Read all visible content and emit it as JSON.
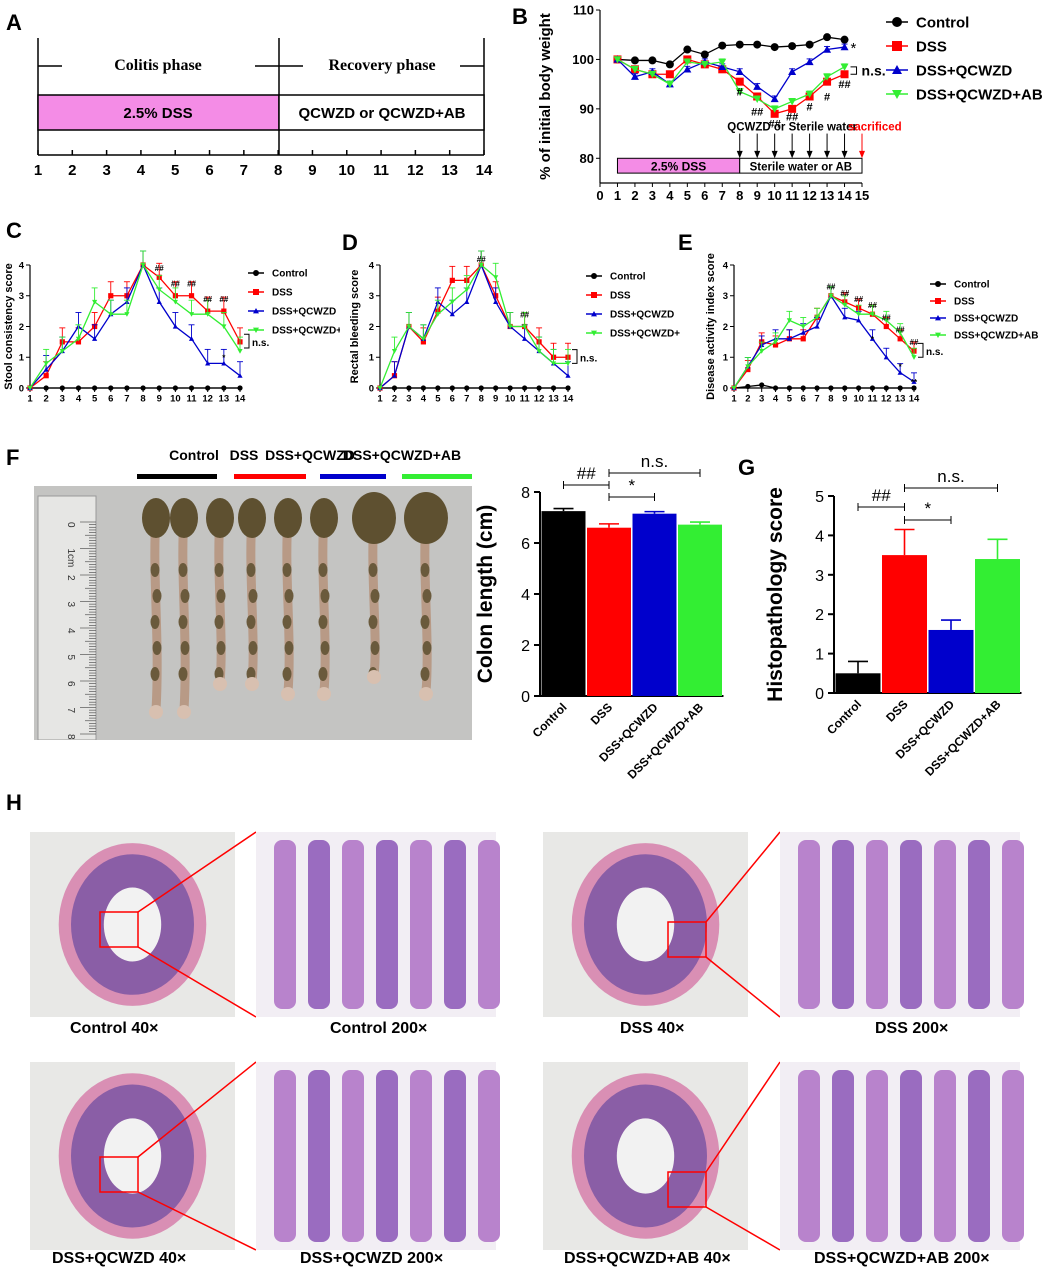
{
  "colors": {
    "control": "#000000",
    "dss": "#ff0000",
    "qcwzd": "#0000cc",
    "qcwzd_ab": "#33ee33",
    "pink": "#f48ce6"
  },
  "panel_labels": {
    "a": "A",
    "b": "B",
    "c": "C",
    "d": "D",
    "e": "E",
    "f": "F",
    "g": "G",
    "h": "H"
  },
  "panel_a": {
    "left_phase": "Colitis phase",
    "right_phase": "Recovery phase",
    "left_box": "2.5% DSS",
    "right_box": "QCWZD or QCWZD+AB",
    "days": [
      "1",
      "2",
      "3",
      "4",
      "5",
      "6",
      "7",
      "8",
      "9",
      "10",
      "11",
      "12",
      "13",
      "14"
    ]
  },
  "legend": {
    "control": "Control",
    "dss": "DSS",
    "qcwzd": "DSS+QCWZD",
    "qcwzd_ab": "DSS+QCWZD+AB"
  },
  "chart_data": [
    {
      "panel": "B",
      "type": "line",
      "ylabel": "% of initial body weight",
      "xlabel": "",
      "x": [
        1,
        2,
        3,
        4,
        5,
        6,
        7,
        8,
        9,
        10,
        11,
        12,
        13,
        14
      ],
      "xticks": [
        "0",
        "1",
        "2",
        "3",
        "4",
        "5",
        "6",
        "7",
        "8",
        "9",
        "10",
        "11",
        "12",
        "13",
        "14",
        "15"
      ],
      "xlim": [
        0,
        15
      ],
      "ylim": [
        75,
        110
      ],
      "yticks": [
        "80",
        "90",
        "100",
        "110"
      ],
      "series": [
        {
          "name": "Control",
          "values": [
            100,
            99.8,
            99.8,
            99,
            102,
            101,
            102.8,
            103,
            103,
            102.5,
            102.7,
            103,
            104.5,
            104
          ]
        },
        {
          "name": "DSS",
          "values": [
            100,
            98,
            97,
            97,
            100,
            99,
            98,
            95.5,
            92.5,
            89,
            90,
            92.5,
            95.5,
            97
          ]
        },
        {
          "name": "DSS+QCWZD",
          "values": [
            100,
            96.5,
            97.5,
            95,
            98,
            99.5,
            98.5,
            97.5,
            94.5,
            92,
            97.5,
            99.5,
            102,
            102.5
          ]
        },
        {
          "name": "DSS+QCWZD+AB",
          "values": [
            100,
            98,
            97,
            95,
            99.5,
            99,
            99.5,
            93.5,
            92,
            90,
            91.5,
            93,
            96.5,
            98.5
          ]
        }
      ],
      "annotations": {
        "star": "*",
        "ns": "n.s.",
        "hash": "#",
        "dhash": "##"
      },
      "inset": {
        "dss_box": "2.5% DSS",
        "water_box": "Sterile water or AB",
        "arrows_label": "QCWZD or Sterile water",
        "sacrificed": "sacrificed"
      }
    },
    {
      "panel": "C",
      "type": "line",
      "ylabel": "Stool consistency score",
      "x": [
        1,
        2,
        3,
        4,
        5,
        6,
        7,
        8,
        9,
        10,
        11,
        12,
        13,
        14
      ],
      "ylim": [
        0,
        4
      ],
      "yticks": [
        "0",
        "1",
        "2",
        "3",
        "4"
      ],
      "xticks": [
        "1",
        "2",
        "3",
        "4",
        "5",
        "6",
        "7",
        "8",
        "9",
        "10",
        "11",
        "12",
        "13",
        "14"
      ],
      "series": [
        {
          "name": "Control",
          "values": [
            0,
            0,
            0,
            0,
            0,
            0,
            0,
            0,
            0,
            0,
            0,
            0,
            0,
            0
          ]
        },
        {
          "name": "DSS",
          "values": [
            0,
            0.4,
            1.5,
            1.5,
            2,
            3,
            3,
            4,
            3.6,
            3,
            3,
            2.5,
            2.5,
            1.5
          ]
        },
        {
          "name": "DSS+QCWZD",
          "values": [
            0,
            0.6,
            1.2,
            2,
            1.6,
            2.4,
            2.8,
            4,
            2.8,
            2,
            1.6,
            0.8,
            0.8,
            0.4
          ]
        },
        {
          "name": "DSS+QCWZD+AB",
          "values": [
            0,
            0.8,
            1.2,
            1.6,
            2.8,
            2.4,
            2.4,
            4,
            3.2,
            2.8,
            2.4,
            2.4,
            2,
            1.2
          ]
        }
      ],
      "annotations": {
        "ns": "n.s.",
        "star": "*",
        "dhash": "##"
      }
    },
    {
      "panel": "D",
      "type": "line",
      "ylabel": "Rectal bleeding score",
      "x": [
        1,
        2,
        3,
        4,
        5,
        6,
        7,
        8,
        9,
        10,
        11,
        12,
        13,
        14
      ],
      "ylim": [
        0,
        4
      ],
      "yticks": [
        "0",
        "1",
        "2",
        "3",
        "4"
      ],
      "xticks": [
        "1",
        "2",
        "3",
        "4",
        "5",
        "6",
        "7",
        "8",
        "9",
        "10",
        "11",
        "12",
        "13",
        "14"
      ],
      "series": [
        {
          "name": "Control",
          "values": [
            0,
            0,
            0,
            0,
            0,
            0,
            0,
            0,
            0,
            0,
            0,
            0,
            0,
            0
          ]
        },
        {
          "name": "DSS",
          "values": [
            0,
            0.4,
            2,
            1.5,
            2.5,
            3.5,
            3.5,
            4,
            3,
            2,
            2,
            1.5,
            1,
            1
          ]
        },
        {
          "name": "DSS+QCWZD",
          "values": [
            0,
            0.4,
            2,
            1.6,
            2.8,
            2.4,
            2.8,
            4,
            2.8,
            2,
            1.6,
            1.2,
            0.8,
            0.4
          ]
        },
        {
          "name": "DSS+QCWZD+AB",
          "values": [
            0,
            1.2,
            2,
            1.6,
            2.4,
            2.8,
            3.2,
            4,
            3.6,
            2,
            2,
            1.2,
            0.8,
            0.8
          ]
        }
      ],
      "annotations": {
        "ns": "n.s.",
        "dhash": "##"
      }
    },
    {
      "panel": "E",
      "type": "line",
      "ylabel": "Disease activity index score",
      "x": [
        1,
        2,
        3,
        4,
        5,
        6,
        7,
        8,
        9,
        10,
        11,
        12,
        13,
        14
      ],
      "ylim": [
        0,
        4
      ],
      "yticks": [
        "0",
        "1",
        "2",
        "3",
        "4"
      ],
      "xticks": [
        "1",
        "2",
        "3",
        "4",
        "5",
        "6",
        "7",
        "8",
        "9",
        "10",
        "11",
        "12",
        "13",
        "14"
      ],
      "series": [
        {
          "name": "Control",
          "values": [
            0,
            0.05,
            0.1,
            0,
            0,
            0,
            0,
            0,
            0,
            0,
            0,
            0,
            0,
            0
          ]
        },
        {
          "name": "DSS",
          "values": [
            0,
            0.6,
            1.5,
            1.4,
            1.6,
            1.6,
            2.3,
            3,
            2.8,
            2.6,
            2.4,
            2,
            1.6,
            1.2
          ]
        },
        {
          "name": "DSS+QCWZD",
          "values": [
            0,
            0.7,
            1.4,
            1.6,
            1.6,
            1.8,
            2,
            3,
            2.3,
            2.2,
            1.6,
            1,
            0.5,
            0.2
          ]
        },
        {
          "name": "DSS+QCWZD+AB",
          "values": [
            0,
            0.7,
            1.2,
            1.5,
            2.2,
            2,
            2.3,
            3,
            2.7,
            2.4,
            2.4,
            2.2,
            1.8,
            1
          ]
        }
      ],
      "annotations": {
        "ns": "n.s.",
        "star": "*",
        "dstar": "**",
        "dhash": "##"
      }
    },
    {
      "panel": "F",
      "type": "bar",
      "ylabel": "Colon length (cm)",
      "categories": [
        "Control",
        "DSS",
        "DSS+QCWZD",
        "DSS+QCWZD+AB"
      ],
      "values": [
        7.25,
        6.6,
        7.15,
        6.72
      ],
      "errors": [
        0.1,
        0.15,
        0.08,
        0.1
      ],
      "ylim": [
        0,
        8
      ],
      "yticks": [
        "0",
        "2",
        "4",
        "6",
        "8"
      ],
      "annotations": {
        "dhash": "##",
        "ns": "n.s.",
        "star": "*"
      }
    },
    {
      "panel": "G",
      "type": "bar",
      "ylabel": "Histopathology score",
      "categories": [
        "Control",
        "DSS",
        "DSS+QCWZD",
        "DSS+QCWZD+AB"
      ],
      "values": [
        0.5,
        3.5,
        1.6,
        3.4
      ],
      "errors": [
        0.3,
        0.65,
        0.25,
        0.5
      ],
      "ylim": [
        0,
        5
      ],
      "yticks": [
        "0",
        "1",
        "2",
        "3",
        "4",
        "5"
      ],
      "annotations": {
        "dhash": "##",
        "ns": "n.s.",
        "star": "*"
      }
    }
  ],
  "photo_f": {
    "labels": [
      "Control",
      "DSS",
      "DSS+QCWZD",
      "DSS+QCWZD+AB"
    ],
    "ruler_ticks": [
      "0",
      "1cm",
      "2",
      "3",
      "4",
      "5",
      "6",
      "7",
      "8"
    ]
  },
  "histology": {
    "captions": [
      "Control 40×",
      "Control 200×",
      "DSS 40×",
      "DSS 200×",
      "DSS+QCWZD 40×",
      "DSS+QCWZD 200×",
      "DSS+QCWZD+AB 40×",
      "DSS+QCWZD+AB 200×"
    ]
  }
}
